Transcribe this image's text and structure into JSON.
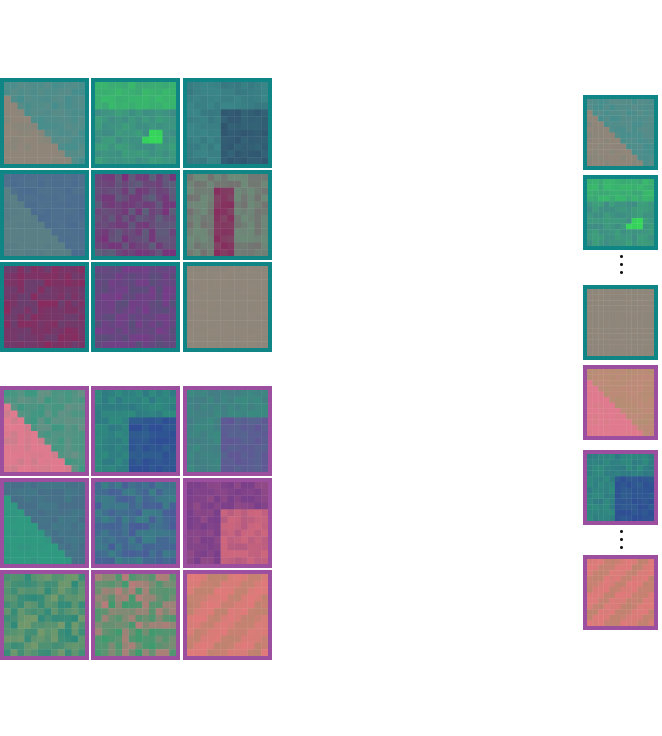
{
  "figure": {
    "colors": {
      "teal_border": "#0f8585",
      "purple_border": "#9b4f9e",
      "background": "#ffffff",
      "ellipsis_dots": "#111111"
    },
    "groups": [
      {
        "name": "teal-group",
        "border_color": "#0f8585",
        "grid_tiles": [
          {
            "pattern": "diag-edge",
            "base": "#8f8578",
            "accent": "#3f8f8f"
          },
          {
            "pattern": "blob-bright",
            "base": "#3f8a86",
            "accent": "#35d65a"
          },
          {
            "pattern": "blob-dark",
            "base": "#3a8587",
            "accent": "#2e4a6a"
          },
          {
            "pattern": "diag-edge",
            "base": "#5a7f85",
            "accent": "#4a6a90"
          },
          {
            "pattern": "noise",
            "base": "#5c5f7a",
            "accent": "#7a2f7a"
          },
          {
            "pattern": "stripe",
            "base": "#6d8a78",
            "accent": "#8a1f5a"
          },
          {
            "pattern": "noise",
            "base": "#6a3f6e",
            "accent": "#8a2a5e"
          },
          {
            "pattern": "noise",
            "base": "#5a4f7a",
            "accent": "#7a3a8a"
          },
          {
            "pattern": "flat",
            "base": "#8a8478",
            "accent": "#94887c"
          }
        ],
        "column_tiles": [
          {
            "pattern": "diag-edge",
            "base": "#8f8578",
            "accent": "#3f8f8f"
          },
          {
            "pattern": "blob-bright",
            "base": "#3f8a86",
            "accent": "#35d65a"
          },
          {
            "pattern": "flat",
            "base": "#8a8478",
            "accent": "#94887c"
          }
        ]
      },
      {
        "name": "purple-group",
        "border_color": "#9b4f9e",
        "grid_tiles": [
          {
            "pattern": "diag-edge",
            "base": "#e07a8e",
            "accent": "#2f9a80"
          },
          {
            "pattern": "blob-dark",
            "base": "#2f8a7e",
            "accent": "#2f3f9a"
          },
          {
            "pattern": "blob-dark",
            "base": "#3a8a80",
            "accent": "#6a4a9a"
          },
          {
            "pattern": "diag-edge",
            "base": "#2f9a80",
            "accent": "#4a6a8a"
          },
          {
            "pattern": "noise",
            "base": "#3a7f86",
            "accent": "#4a5a9a"
          },
          {
            "pattern": "blob-dark",
            "base": "#7a3f8a",
            "accent": "#e0707a"
          },
          {
            "pattern": "noise",
            "base": "#2f8a7a",
            "accent": "#7a9a6a"
          },
          {
            "pattern": "noise",
            "base": "#3f9a6e",
            "accent": "#c07a7a"
          },
          {
            "pattern": "diag-stripes",
            "base": "#e07a7a",
            "accent": "#b0876a"
          }
        ],
        "column_tiles": [
          {
            "pattern": "diag-edge",
            "base": "#e07a8e",
            "accent": "#b09070"
          },
          {
            "pattern": "blob-dark",
            "base": "#2f8a7e",
            "accent": "#2f3f9a"
          },
          {
            "pattern": "diag-stripes",
            "base": "#e07a7a",
            "accent": "#b0876a"
          }
        ]
      }
    ]
  }
}
